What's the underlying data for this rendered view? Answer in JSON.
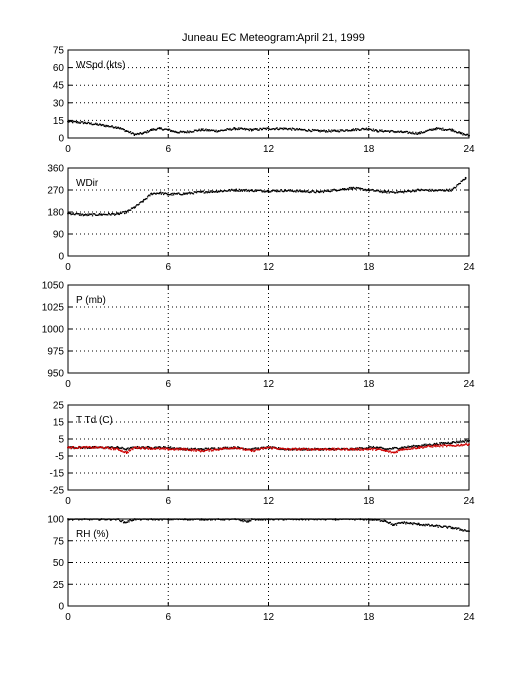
{
  "title": {
    "station": "Juneau EC Meteogram:",
    "date": "April 21, 1999"
  },
  "colors": {
    "axis": "#000000",
    "grid": "#000000",
    "temperature": "#000000",
    "dewpoint": "#cc0000"
  },
  "chart_data": [
    {
      "type": "scatter",
      "label": "WSpd (kts)",
      "xlim": [
        0,
        24
      ],
      "ylim": [
        0,
        75
      ],
      "grid": true,
      "xticks": [
        "0",
        "6",
        "12",
        "18",
        "24"
      ],
      "yticks": [
        "0",
        "15",
        "30",
        "45",
        "60",
        "75"
      ],
      "series": [
        {
          "color": "#000000",
          "x": [
            0,
            1,
            2,
            3,
            3.5,
            4,
            4.5,
            5,
            5.5,
            6,
            6.5,
            7,
            8,
            9,
            10,
            11,
            12,
            13,
            14,
            15,
            16,
            17,
            18,
            18.5,
            19,
            20,
            21,
            22,
            23,
            23.5,
            24
          ],
          "y": [
            14,
            13,
            11,
            9,
            6,
            3,
            4,
            7,
            8,
            7,
            5,
            5,
            7,
            6,
            8,
            7,
            8,
            8,
            7,
            6,
            6,
            7,
            8,
            6,
            6,
            5,
            4,
            8,
            7,
            4,
            2
          ]
        }
      ]
    },
    {
      "type": "scatter",
      "label": "WDir",
      "xlim": [
        0,
        24
      ],
      "ylim": [
        0,
        360
      ],
      "grid": true,
      "xticks": [
        "0",
        "6",
        "12",
        "18",
        "24"
      ],
      "yticks": [
        "0",
        "90",
        "180",
        "270",
        "360"
      ],
      "series": [
        {
          "color": "#000000",
          "x": [
            0,
            1,
            2,
            3,
            3.5,
            4,
            4.5,
            5,
            5.5,
            6,
            7,
            8,
            9,
            10,
            11,
            12,
            13,
            14,
            15,
            16,
            17,
            18,
            19,
            20,
            21,
            22,
            23,
            23.8
          ],
          "y": [
            175,
            168,
            170,
            172,
            180,
            200,
            225,
            255,
            258,
            252,
            255,
            262,
            265,
            270,
            268,
            266,
            268,
            265,
            262,
            270,
            278,
            270,
            262,
            262,
            270,
            268,
            270,
            320
          ]
        }
      ]
    },
    {
      "type": "scatter",
      "label": "P (mb)",
      "xlim": [
        0,
        24
      ],
      "ylim": [
        950,
        1050
      ],
      "grid": true,
      "xticks": [
        "0",
        "6",
        "12",
        "18",
        "24"
      ],
      "yticks": [
        "950",
        "975",
        "1000",
        "1025",
        "1050"
      ],
      "series": []
    },
    {
      "type": "scatter",
      "label": "T Td (C)",
      "xlim": [
        0,
        24
      ],
      "ylim": [
        -25,
        25
      ],
      "grid": true,
      "xticks": [
        "0",
        "6",
        "12",
        "18",
        "24"
      ],
      "yticks": [
        "-25",
        "-15",
        "-5",
        "5",
        "15",
        "25"
      ],
      "series": [
        {
          "color": "#000000",
          "x": [
            0,
            2,
            3,
            3.5,
            4,
            6,
            7,
            8,
            10,
            11,
            12,
            13,
            15,
            17,
            18,
            18.5,
            19,
            20,
            21,
            22,
            23,
            24
          ],
          "y": [
            0,
            0,
            0,
            -1,
            0,
            0,
            -1,
            -1,
            0,
            -1,
            0,
            -1,
            -1,
            -1,
            0,
            0,
            -1,
            0,
            1,
            2,
            3,
            4
          ]
        },
        {
          "color": "#cc0000",
          "x": [
            0,
            2,
            3,
            3.5,
            4,
            6,
            7,
            8,
            10,
            11,
            12,
            13,
            15,
            17,
            18,
            18.5,
            19,
            19.5,
            20,
            21,
            22,
            23,
            24
          ],
          "y": [
            0,
            0,
            -1,
            -3,
            0,
            -1,
            -1,
            -2,
            0,
            -2,
            0,
            -1,
            -1,
            -1,
            -1,
            -1,
            -2,
            -3,
            -1,
            0,
            1,
            1,
            2
          ]
        }
      ]
    },
    {
      "type": "scatter",
      "label": "RH (%)",
      "xlim": [
        0,
        24
      ],
      "ylim": [
        0,
        100
      ],
      "grid": true,
      "xticks": [
        "0",
        "6",
        "12",
        "18",
        "24"
      ],
      "yticks": [
        "0",
        "25",
        "50",
        "75",
        "100"
      ],
      "series": [
        {
          "color": "#000000",
          "x": [
            0,
            1,
            2,
            3,
            3.4,
            4,
            5,
            6,
            7,
            8,
            9,
            10,
            10.8,
            11,
            12,
            14,
            16,
            17.5,
            18,
            18.5,
            19,
            19.5,
            20,
            21,
            22,
            23,
            24
          ],
          "y": [
            100,
            100,
            100,
            100,
            96,
            100,
            100,
            100,
            100,
            100,
            100,
            100,
            97,
            100,
            100,
            100,
            100,
            100,
            100,
            99,
            98,
            93,
            96,
            94,
            92,
            90,
            86
          ]
        }
      ]
    }
  ]
}
